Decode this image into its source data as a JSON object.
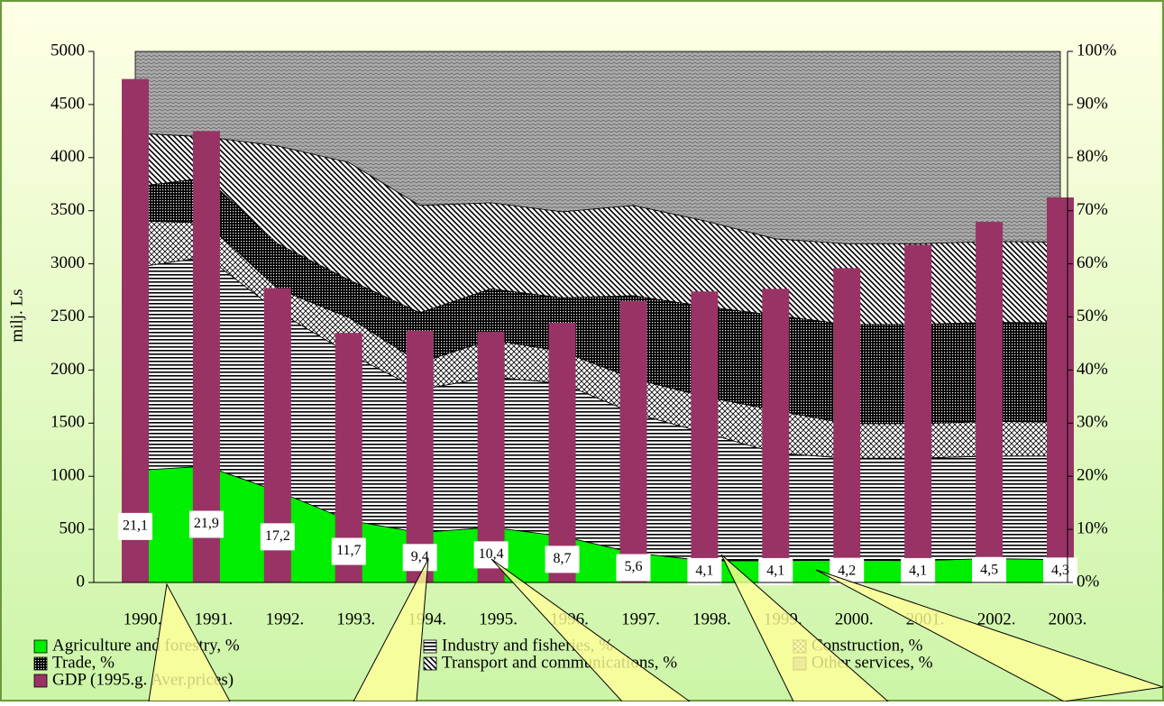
{
  "chart_data": {
    "type": "combo",
    "y_label": "milj. Ls",
    "categories": [
      "1990.",
      "1991.",
      "1992.",
      "1993.",
      "1994.",
      "1995.",
      "1996.",
      "1997.",
      "1998.",
      "1999.",
      "2000.",
      "2001.",
      "2002.",
      "2003."
    ],
    "ylim": [
      0,
      5000
    ],
    "yticks": [
      0,
      500,
      1000,
      1500,
      2000,
      2500,
      3000,
      3500,
      4000,
      4500,
      5000
    ],
    "y2lim": [
      0,
      100
    ],
    "y2ticks": [
      {
        "value": 0,
        "label": "0%"
      },
      {
        "value": 10,
        "label": "10%"
      },
      {
        "value": 20,
        "label": "20%"
      },
      {
        "value": 30,
        "label": "30%"
      },
      {
        "value": 40,
        "label": "40%"
      },
      {
        "value": 50,
        "label": "50%"
      },
      {
        "value": 60,
        "label": "60%"
      },
      {
        "value": 70,
        "label": "70%"
      },
      {
        "value": 80,
        "label": "80%"
      },
      {
        "value": 90,
        "label": "90%"
      },
      {
        "value": 100,
        "label": "100%"
      }
    ],
    "legend": "bottom",
    "series": [
      {
        "name": "Agriculture and forestry, %",
        "type": "area",
        "axis": "y2",
        "color": "#00ee00",
        "values": [
          21.1,
          21.9,
          17.2,
          11.7,
          9.4,
          10.4,
          8.7,
          5.6,
          4.1,
          4.1,
          4.2,
          4.1,
          4.5,
          4.3
        ],
        "value_labels": [
          "21,1",
          "21,9",
          "17,2",
          "11,7",
          "9,4",
          "10,4",
          "8,7",
          "5,6",
          "4,1",
          "4,1",
          "4,2",
          "4,1",
          "4,5",
          "4,3"
        ]
      },
      {
        "name": "Industry and fisheries, %",
        "type": "area",
        "axis": "y2",
        "color": "#000000",
        "values": [
          38.2,
          39.4,
          33.9,
          31.4,
          26.9,
          28.3,
          28.8,
          26.3,
          24.1,
          20.3,
          19.2,
          19.3,
          19.3,
          19.5
        ]
      },
      {
        "name": "Construction, %",
        "type": "area",
        "axis": "y2",
        "color": "#000000",
        "values": [
          8.8,
          6.4,
          4.2,
          6.8,
          5.1,
          7.0,
          6.0,
          6.5,
          6.8,
          8.0,
          6.5,
          6.5,
          6.5,
          6.4
        ]
      },
      {
        "name": "Trade, %",
        "type": "area",
        "axis": "y2",
        "color": "#000000",
        "values": [
          6.4,
          8.5,
          8.5,
          7.1,
          9.4,
          9.6,
          10.1,
          15.6,
          17.0,
          17.9,
          18.7,
          18.7,
          18.7,
          18.7
        ]
      },
      {
        "name": "Transport and communications, %",
        "type": "area",
        "axis": "y2",
        "color": "#000000",
        "values": [
          10.1,
          7.7,
          18.4,
          22.1,
          20.2,
          16.2,
          16.2,
          17.0,
          16.1,
          14.4,
          15.2,
          15.2,
          15.2,
          15.2
        ]
      },
      {
        "name": "Other services, %",
        "type": "area",
        "axis": "y2",
        "color": "#808080",
        "values": [
          15.4,
          16.1,
          17.8,
          20.9,
          29.0,
          28.5,
          30.2,
          29.0,
          31.9,
          35.3,
          36.2,
          36.2,
          35.8,
          35.9
        ]
      },
      {
        "name": "GDP (1995.g. Aver.prices)",
        "type": "bar",
        "axis": "y",
        "color": "#993366",
        "values": [
          4740,
          4250,
          2770,
          2350,
          2370,
          2360,
          2445,
          2650,
          2740,
          2765,
          2960,
          3180,
          3395,
          3625
        ]
      }
    ]
  }
}
